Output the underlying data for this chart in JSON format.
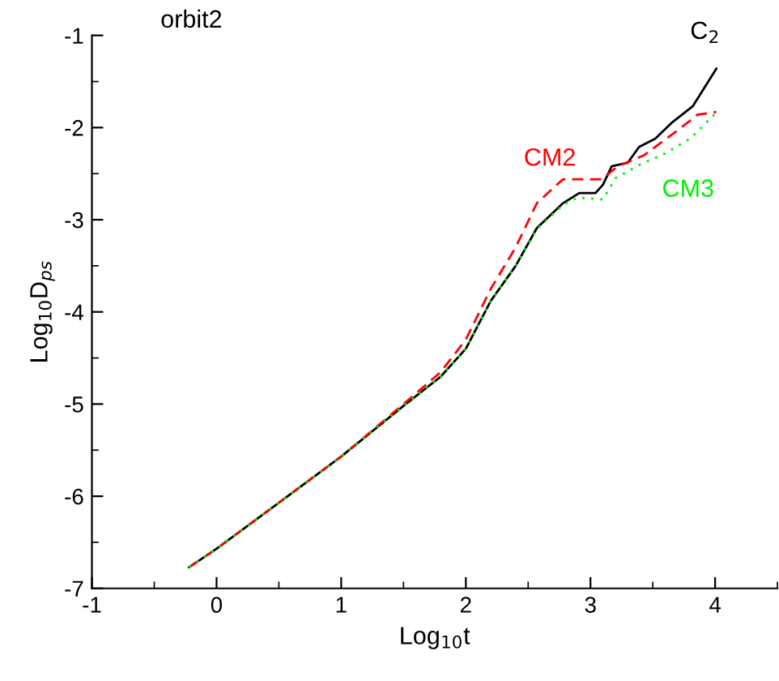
{
  "chart_data": {
    "type": "line",
    "title": "orbit2",
    "xlabel": "Log$_{10}$t",
    "ylabel": "Log$_{10}$D$_{ps}$",
    "xlim": [
      -1,
      4.5
    ],
    "ylim": [
      -7,
      -1
    ],
    "xticks": [
      -1,
      0,
      1,
      2,
      3,
      4
    ],
    "yticks": [
      -7,
      -6,
      -5,
      -4,
      -3,
      -2,
      -1
    ],
    "grid": false,
    "legend": false,
    "series": [
      {
        "name": "C$_{2}$",
        "color": "#000000",
        "line_style": "solid",
        "x": [
          -0.22,
          0,
          0.5,
          1,
          1.5,
          1.8,
          2.0,
          2.2,
          2.4,
          2.57,
          2.78,
          2.91,
          3.04,
          3.1,
          3.17,
          3.3,
          3.39,
          3.52,
          3.65,
          3.82,
          4.01
        ],
        "values": [
          -6.77,
          -6.57,
          -6.07,
          -5.57,
          -5.02,
          -4.7,
          -4.4,
          -3.88,
          -3.5,
          -3.09,
          -2.82,
          -2.71,
          -2.71,
          -2.62,
          -2.42,
          -2.38,
          -2.21,
          -2.12,
          -1.95,
          -1.77,
          -1.36
        ]
      },
      {
        "name": "CM2",
        "color": "#ff0000",
        "line_style": "dashed",
        "x": [
          -0.22,
          0,
          0.5,
          1,
          1.5,
          1.8,
          2.0,
          2.2,
          2.4,
          2.57,
          2.78,
          3.09,
          3.22,
          3.43,
          3.69,
          3.86,
          4.01
        ],
        "values": [
          -6.77,
          -6.57,
          -6.07,
          -5.57,
          -5.0,
          -4.65,
          -4.3,
          -3.75,
          -3.3,
          -2.82,
          -2.56,
          -2.56,
          -2.42,
          -2.3,
          -2.04,
          -1.86,
          -1.83
        ]
      },
      {
        "name": "CM3",
        "color": "#00ee00",
        "line_style": "dotted",
        "x": [
          -0.22,
          0,
          0.5,
          1,
          1.5,
          1.8,
          2.0,
          2.2,
          2.4,
          2.57,
          2.78,
          2.9,
          3.0,
          3.1,
          3.2,
          3.4,
          3.6,
          3.8,
          4.0
        ],
        "values": [
          -6.77,
          -6.57,
          -6.07,
          -5.57,
          -5.02,
          -4.7,
          -4.4,
          -3.88,
          -3.5,
          -3.1,
          -2.84,
          -2.76,
          -2.77,
          -2.78,
          -2.55,
          -2.4,
          -2.28,
          -2.12,
          -1.85
        ]
      }
    ]
  }
}
